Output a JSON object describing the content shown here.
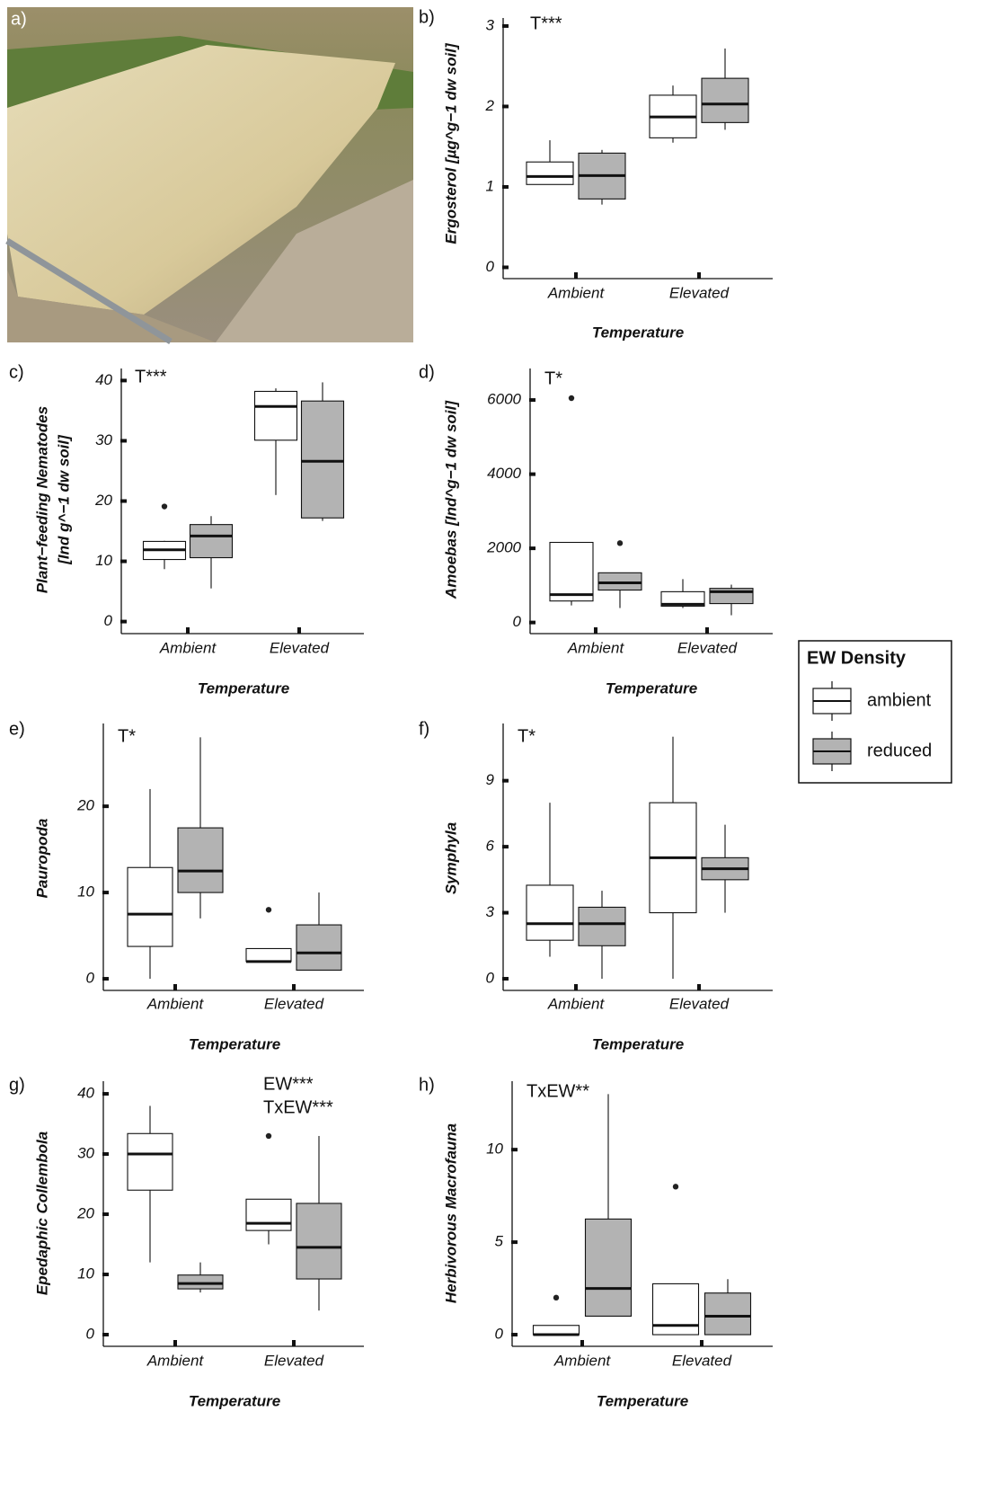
{
  "photo_label": "a)",
  "legend": {
    "title": "EW Density",
    "series": [
      {
        "name": "ambient",
        "color": "#ffffff"
      },
      {
        "name": "reduced",
        "color": "#b3b3b3"
      }
    ]
  },
  "chart_data": [
    {
      "type": "box",
      "label": "b)",
      "annotation": [
        "T***"
      ],
      "y_label": [
        "Ergosterol [µg^g−1 dw soil]"
      ],
      "x_label": "Temperature",
      "categories": [
        "Ambient",
        "Elevated"
      ],
      "ylim": [
        -0.14,
        3.1
      ],
      "yticks": [
        0,
        1,
        2,
        3
      ],
      "series": [
        {
          "boxes": [
            {
              "whislo": 1.03,
              "q1": 1.03,
              "med": 1.13,
              "q3": 1.31,
              "whishi": 1.58,
              "fliers": []
            },
            {
              "whislo": 1.55,
              "q1": 1.61,
              "med": 1.87,
              "q3": 2.14,
              "whishi": 2.26,
              "fliers": []
            }
          ]
        },
        {
          "boxes": [
            {
              "whislo": 0.78,
              "q1": 0.85,
              "med": 1.14,
              "q3": 1.42,
              "whishi": 1.46,
              "fliers": []
            },
            {
              "whislo": 1.71,
              "q1": 1.8,
              "med": 2.03,
              "q3": 2.35,
              "whishi": 2.72,
              "fliers": []
            }
          ]
        }
      ]
    },
    {
      "type": "box",
      "label": "c)",
      "annotation": [
        "T***"
      ],
      "y_label": [
        "Plant−feeding Nematodes",
        "[Ind g^−1 dw soil]"
      ],
      "x_label": "Temperature",
      "categories": [
        "Ambient",
        "Elevated"
      ],
      "ylim": [
        -2,
        42
      ],
      "yticks": [
        0,
        10,
        20,
        30,
        40
      ],
      "series": [
        {
          "boxes": [
            {
              "whislo": 8.7,
              "q1": 10.3,
              "med": 11.9,
              "q3": 13.3,
              "whishi": 13.4,
              "fliers": [
                19.1
              ]
            },
            {
              "whislo": 21.0,
              "q1": 30.1,
              "med": 35.7,
              "q3": 38.2,
              "whishi": 38.7,
              "fliers": []
            }
          ]
        },
        {
          "boxes": [
            {
              "whislo": 5.5,
              "q1": 10.6,
              "med": 14.2,
              "q3": 16.1,
              "whishi": 17.5,
              "fliers": []
            },
            {
              "whislo": 16.7,
              "q1": 17.2,
              "med": 26.6,
              "q3": 36.6,
              "whishi": 39.7,
              "fliers": []
            }
          ]
        }
      ]
    },
    {
      "type": "box",
      "label": "d)",
      "annotation": [
        "T*"
      ],
      "y_label": [
        "Amoebas [Ind^g−1 dw soil]"
      ],
      "x_label": "Temperature",
      "categories": [
        "Ambient",
        "Elevated"
      ],
      "ylim": [
        -300,
        6850
      ],
      "yticks": [
        0,
        2000,
        4000,
        6000
      ],
      "series": [
        {
          "boxes": [
            {
              "whislo": 460,
              "q1": 580,
              "med": 750,
              "q3": 2160,
              "whishi": 2160,
              "fliers": [
                6050
              ]
            },
            {
              "whislo": 390,
              "q1": 440,
              "med": 490,
              "q3": 830,
              "whishi": 1170,
              "fliers": []
            }
          ]
        },
        {
          "boxes": [
            {
              "whislo": 390,
              "q1": 875,
              "med": 1070,
              "q3": 1340,
              "whishi": 1340,
              "fliers": [
                2140
              ]
            },
            {
              "whislo": 195,
              "q1": 510,
              "med": 830,
              "q3": 920,
              "whishi": 1020,
              "fliers": []
            }
          ]
        }
      ]
    },
    {
      "type": "box",
      "label": "e)",
      "annotation": [
        "T*"
      ],
      "y_label": [
        "Pauropoda"
      ],
      "x_label": "Temperature",
      "categories": [
        "Ambient",
        "Elevated"
      ],
      "ylim": [
        -1.35,
        29.6
      ],
      "yticks": [
        0,
        10,
        20
      ],
      "series": [
        {
          "boxes": [
            {
              "whislo": 0,
              "q1": 3.75,
              "med": 7.5,
              "q3": 12.9,
              "whishi": 22,
              "fliers": []
            },
            {
              "whislo": 2,
              "q1": 2,
              "med": 2,
              "q3": 3.5,
              "whishi": 3.5,
              "fliers": [
                8
              ]
            }
          ]
        },
        {
          "boxes": [
            {
              "whislo": 7,
              "q1": 10,
              "med": 12.5,
              "q3": 17.5,
              "whishi": 28,
              "fliers": []
            },
            {
              "whislo": 1,
              "q1": 1,
              "med": 3,
              "q3": 6.25,
              "whishi": 10,
              "fliers": []
            }
          ]
        }
      ]
    },
    {
      "type": "box",
      "label": "f)",
      "annotation": [
        "T*"
      ],
      "y_label": [
        "Symphyla"
      ],
      "x_label": "Temperature",
      "categories": [
        "Ambient",
        "Elevated"
      ],
      "ylim": [
        -0.53,
        11.6
      ],
      "yticks": [
        0,
        3,
        6,
        9
      ],
      "series": [
        {
          "boxes": [
            {
              "whislo": 1,
              "q1": 1.75,
              "med": 2.5,
              "q3": 4.25,
              "whishi": 8,
              "fliers": []
            },
            {
              "whislo": 0,
              "q1": 3,
              "med": 5.5,
              "q3": 8,
              "whishi": 11,
              "fliers": []
            }
          ]
        },
        {
          "boxes": [
            {
              "whislo": 0,
              "q1": 1.5,
              "med": 2.5,
              "q3": 3.25,
              "whishi": 4,
              "fliers": []
            },
            {
              "whislo": 3,
              "q1": 4.5,
              "med": 5,
              "q3": 5.5,
              "whishi": 7,
              "fliers": []
            }
          ]
        }
      ]
    },
    {
      "type": "box",
      "label": "g)",
      "annotation": [
        "EW***",
        "TxEW***"
      ],
      "y_label": [
        "Epedaphic Collembola"
      ],
      "x_label": "Temperature",
      "categories": [
        "Ambient",
        "Elevated"
      ],
      "ylim": [
        -1.94,
        42.1
      ],
      "yticks": [
        0,
        10,
        20,
        30,
        40
      ],
      "series": [
        {
          "boxes": [
            {
              "whislo": 12,
              "q1": 24,
              "med": 30,
              "q3": 33.4,
              "whishi": 38,
              "fliers": []
            },
            {
              "whislo": 15,
              "q1": 17.3,
              "med": 18.5,
              "q3": 22.5,
              "whishi": 22.5,
              "fliers": [
                33
              ]
            }
          ]
        },
        {
          "boxes": [
            {
              "whislo": 7,
              "q1": 7.6,
              "med": 8.5,
              "q3": 9.9,
              "whishi": 12,
              "fliers": []
            },
            {
              "whislo": 4,
              "q1": 9.25,
              "med": 14.5,
              "q3": 21.8,
              "whishi": 33,
              "fliers": []
            }
          ]
        }
      ]
    },
    {
      "type": "box",
      "label": "h)",
      "annotation": [
        "TxEW**"
      ],
      "y_label": [
        "Herbivorous Macrofauna"
      ],
      "x_label": "Temperature",
      "categories": [
        "Ambient",
        "Elevated"
      ],
      "ylim": [
        -0.63,
        13.7
      ],
      "yticks": [
        0,
        5,
        10
      ],
      "series": [
        {
          "boxes": [
            {
              "whislo": 0,
              "q1": 0,
              "med": 0,
              "q3": 0.5,
              "whishi": 0.5,
              "fliers": [
                2
              ]
            },
            {
              "whislo": 0,
              "q1": 0,
              "med": 0.5,
              "q3": 2.75,
              "whishi": 2.75,
              "fliers": [
                8
              ]
            }
          ]
        },
        {
          "boxes": [
            {
              "whislo": 1,
              "q1": 1,
              "med": 2.5,
              "q3": 6.25,
              "whishi": 13,
              "fliers": []
            },
            {
              "whislo": 0,
              "q1": 0,
              "med": 1,
              "q3": 2.25,
              "whishi": 3,
              "fliers": []
            }
          ]
        }
      ]
    }
  ]
}
